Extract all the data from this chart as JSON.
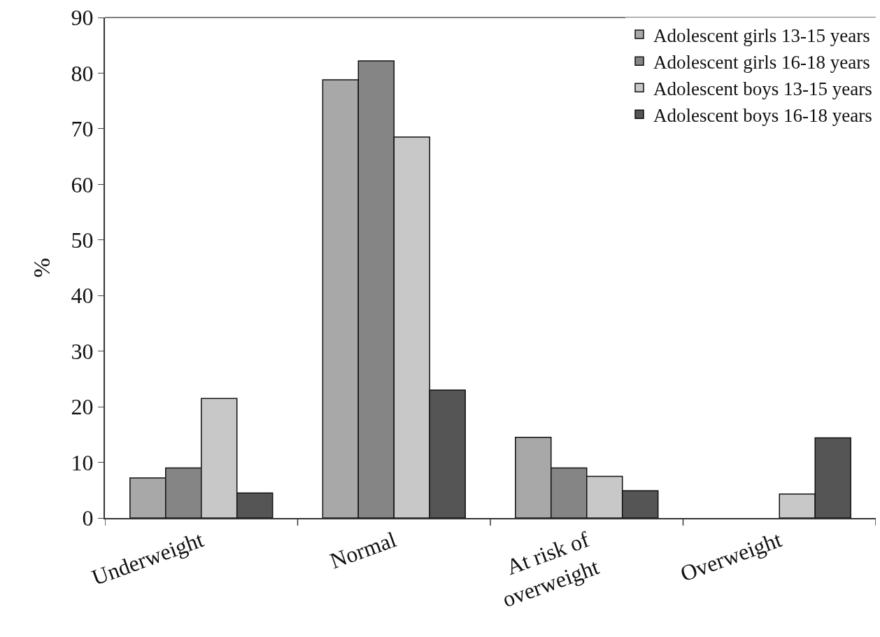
{
  "chart_data": {
    "type": "bar",
    "ylabel": "%",
    "categories": [
      "Underweight",
      "Normal",
      "At risk of\noverweight",
      "Overweight"
    ],
    "series": [
      {
        "name": "Adolescent girls 13-15 years",
        "color": "#a8a8a8",
        "values": [
          7.2,
          78.8,
          14.5,
          null
        ]
      },
      {
        "name": "Adolescent girls 16-18 years",
        "color": "#858585",
        "values": [
          9.0,
          82.2,
          9.0,
          null
        ]
      },
      {
        "name": "Adolescent boys 13-15 years",
        "color": "#c8c8c8",
        "values": [
          21.5,
          68.5,
          7.5,
          4.3
        ]
      },
      {
        "name": "Adolescent boys 16-18 years",
        "color": "#555555",
        "values": [
          4.5,
          23.0,
          4.9,
          14.4
        ]
      }
    ],
    "ylim": [
      0,
      90
    ],
    "yticks": [
      0,
      10,
      20,
      30,
      40,
      50,
      60,
      70,
      80,
      90
    ],
    "grid": false,
    "legend": "top right"
  }
}
